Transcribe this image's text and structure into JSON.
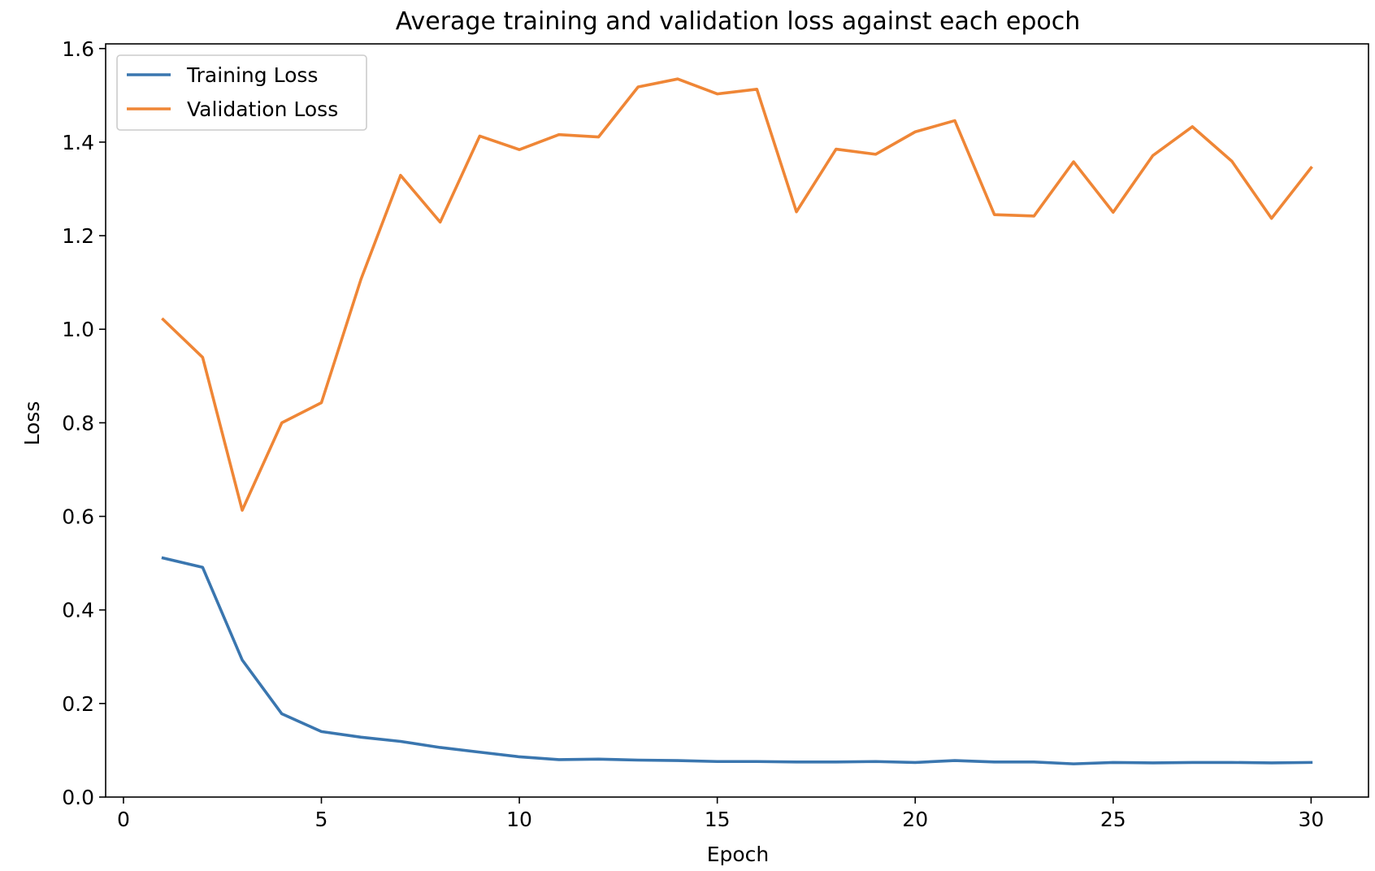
{
  "chart_data": {
    "type": "line",
    "title": "Average training and validation loss against each epoch",
    "xlabel": "Epoch",
    "ylabel": "Loss",
    "xlim": [
      -0.45,
      31.45
    ],
    "ylim": [
      0.0,
      1.61
    ],
    "xticks": [
      0,
      5,
      10,
      15,
      20,
      25,
      30
    ],
    "xtick_labels": [
      "0",
      "5",
      "10",
      "15",
      "20",
      "25",
      "30"
    ],
    "yticks": [
      0.0,
      0.2,
      0.4,
      0.6,
      0.8,
      1.0,
      1.2,
      1.4,
      1.6
    ],
    "ytick_labels": [
      "0.0",
      "0.2",
      "0.4",
      "0.6",
      "0.8",
      "1.0",
      "1.2",
      "1.4",
      "1.6"
    ],
    "grid": false,
    "legend_position": "top-left",
    "x": [
      1,
      2,
      3,
      4,
      5,
      6,
      7,
      8,
      9,
      10,
      11,
      12,
      13,
      14,
      15,
      16,
      17,
      18,
      19,
      20,
      21,
      22,
      23,
      24,
      25,
      26,
      27,
      28,
      29,
      30
    ],
    "series": [
      {
        "name": "Training Loss",
        "color": "#3a76af",
        "values": [
          0.511,
          0.491,
          0.293,
          0.178,
          0.14,
          0.128,
          0.119,
          0.106,
          0.096,
          0.086,
          0.08,
          0.081,
          0.079,
          0.078,
          0.076,
          0.076,
          0.075,
          0.075,
          0.076,
          0.074,
          0.078,
          0.075,
          0.075,
          0.071,
          0.074,
          0.073,
          0.074,
          0.074,
          0.073,
          0.074
        ]
      },
      {
        "name": "Validation Loss",
        "color": "#ef8636",
        "values": [
          1.021,
          0.94,
          0.613,
          0.8,
          0.843,
          1.107,
          1.329,
          1.229,
          1.413,
          1.384,
          1.416,
          1.411,
          1.518,
          1.535,
          1.503,
          1.513,
          1.251,
          1.385,
          1.374,
          1.422,
          1.446,
          1.245,
          1.242,
          1.358,
          1.25,
          1.371,
          1.433,
          1.359,
          1.237,
          1.345
        ]
      }
    ]
  }
}
